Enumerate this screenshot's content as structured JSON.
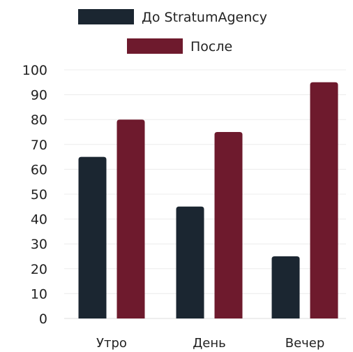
{
  "chart_data": {
    "type": "bar",
    "categories": [
      "Утро",
      "День",
      "Вечер"
    ],
    "series": [
      {
        "name": "До StratumAgency",
        "values": [
          65,
          45,
          25
        ],
        "color": "#1b2631"
      },
      {
        "name": "После",
        "values": [
          80,
          75,
          95
        ],
        "color": "#6e1a2d"
      }
    ],
    "ylim": [
      0,
      100
    ],
    "yticks": [
      0,
      10,
      20,
      30,
      40,
      50,
      60,
      70,
      80,
      90,
      100
    ],
    "grid": true,
    "gridColor": "#ececec",
    "legend": "top-center"
  }
}
